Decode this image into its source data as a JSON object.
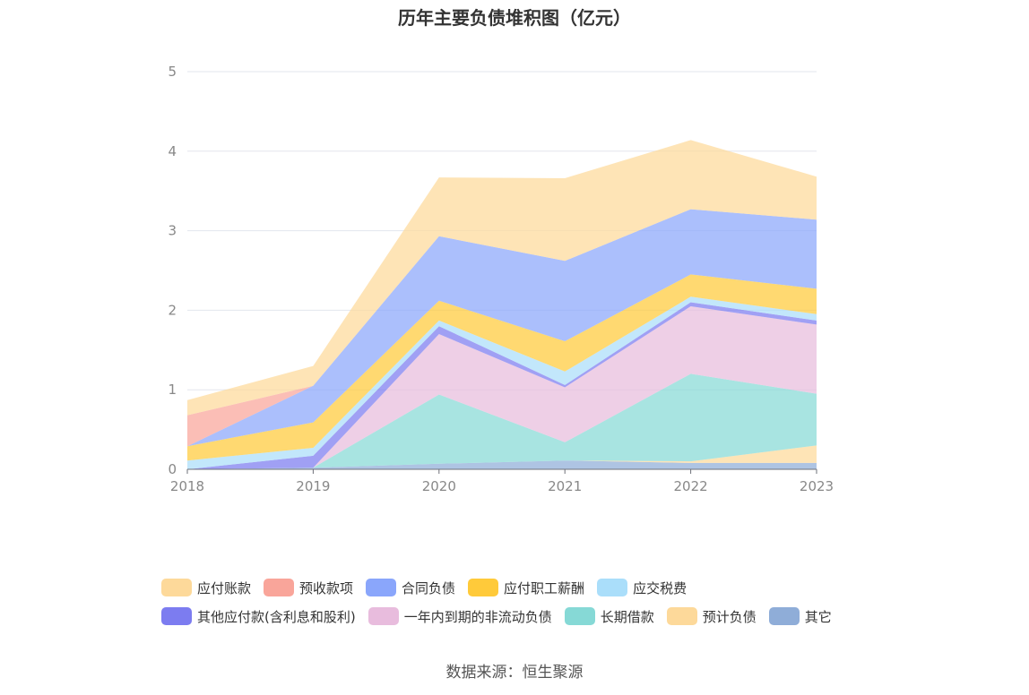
{
  "chart_data": {
    "type": "area",
    "title": "历年主要负债堆积图（亿元）",
    "categories": [
      "2018",
      "2019",
      "2020",
      "2021",
      "2022",
      "2023"
    ],
    "y_ticks": [
      "0",
      "1",
      "2",
      "3",
      "4",
      "5"
    ],
    "ylim": [
      0,
      5
    ],
    "stacked": true,
    "grid": true,
    "legend_position": "bottom",
    "series": [
      {
        "name": "其它",
        "color": "#8fadd8",
        "values": [
          0.0,
          0.02,
          0.07,
          0.11,
          0.08,
          0.08
        ]
      },
      {
        "name": "预计负债",
        "color": "#fdd99a",
        "values": [
          0.0,
          0.0,
          0.0,
          0.0,
          0.02,
          0.22
        ]
      },
      {
        "name": "长期借款",
        "color": "#86d9d6",
        "values": [
          0.0,
          0.0,
          0.87,
          0.23,
          1.1,
          0.65
        ]
      },
      {
        "name": "一年内到期的非流动负债",
        "color": "#e8bcdd",
        "values": [
          0.0,
          0.0,
          0.76,
          0.69,
          0.85,
          0.87
        ]
      },
      {
        "name": "其他应付款(含利息和股利)",
        "color": "#7c7cf0",
        "values": [
          0.0,
          0.15,
          0.1,
          0.03,
          0.05,
          0.05
        ]
      },
      {
        "name": "应交税费",
        "color": "#aadefa",
        "values": [
          0.11,
          0.1,
          0.07,
          0.17,
          0.07,
          0.08
        ]
      },
      {
        "name": "应付职工薪酬",
        "color": "#ffca3a",
        "values": [
          0.18,
          0.32,
          0.25,
          0.38,
          0.28,
          0.32
        ]
      },
      {
        "name": "合同负债",
        "color": "#8aa6fb",
        "values": [
          0.0,
          0.46,
          0.81,
          1.01,
          0.82,
          0.87
        ]
      },
      {
        "name": "预收款项",
        "color": "#f9a59a",
        "values": [
          0.39,
          0.0,
          0.0,
          0.0,
          0.0,
          0.0
        ]
      },
      {
        "name": "应付账款",
        "color": "#fdd99a",
        "values": [
          0.19,
          0.25,
          0.74,
          1.04,
          0.87,
          0.54
        ]
      }
    ]
  },
  "legend": [
    [
      {
        "label": "应付账款",
        "color": "#fdd99a"
      },
      {
        "label": "预收款项",
        "color": "#f9a59a"
      },
      {
        "label": "合同负债",
        "color": "#8aa6fb"
      },
      {
        "label": "应付职工薪酬",
        "color": "#ffca3a"
      },
      {
        "label": "应交税费",
        "color": "#aadefa"
      }
    ],
    [
      {
        "label": "其他应付款(含利息和股利)",
        "color": "#7c7cf0"
      },
      {
        "label": "一年内到期的非流动负债",
        "color": "#e8bcdd"
      },
      {
        "label": "长期借款",
        "color": "#86d9d6"
      },
      {
        "label": "预计负债",
        "color": "#fdd99a"
      },
      {
        "label": "其它",
        "color": "#8fadd8"
      }
    ]
  ],
  "source": "数据来源：恒生聚源"
}
